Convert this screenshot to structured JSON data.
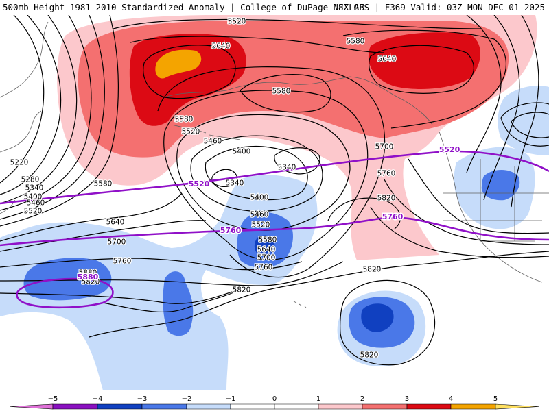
{
  "header": {
    "left_title": "500mb Height 1981–2010 Standardized Anomaly | College of DuPage NEXLAB",
    "right_title": "18Z GFS | F369 Valid: 03Z MON DEC 01 2025"
  },
  "colors": {
    "neg5": "#e070d8",
    "neg4": "#8a10c0",
    "neg3": "#1040c0",
    "neg2": "#4a78e8",
    "neg1": "#c6dcfa",
    "pos1": "#fcc8cc",
    "pos2": "#f47070",
    "pos3": "#dc0a14",
    "pos4": "#f4a400",
    "pos5": "#ffe060",
    "contour": "#000000",
    "highlight": "#9010c8",
    "coast": "#606060"
  },
  "map": {
    "contour_labels": [
      "5520",
      "5640",
      "5580",
      "5640",
      "5580",
      "5580",
      "5520",
      "5460",
      "5400",
      "5340",
      "5220",
      "5280",
      "5340",
      "5400",
      "5460",
      "5520",
      "5580",
      "5340",
      "5700",
      "5760",
      "5820",
      "5400",
      "5460",
      "5520",
      "5580",
      "5640",
      "5700",
      "5760",
      "5640",
      "5700",
      "5760",
      "5880",
      "5820",
      "5820",
      "5820",
      "5820"
    ],
    "highlight_labels": [
      "5520",
      "5520",
      "5760",
      "5760"
    ]
  },
  "colorbar": {
    "ticks": [
      "−5",
      "−4",
      "−3",
      "−2",
      "−1",
      "0",
      "1",
      "2",
      "3",
      "4",
      "5"
    ]
  }
}
